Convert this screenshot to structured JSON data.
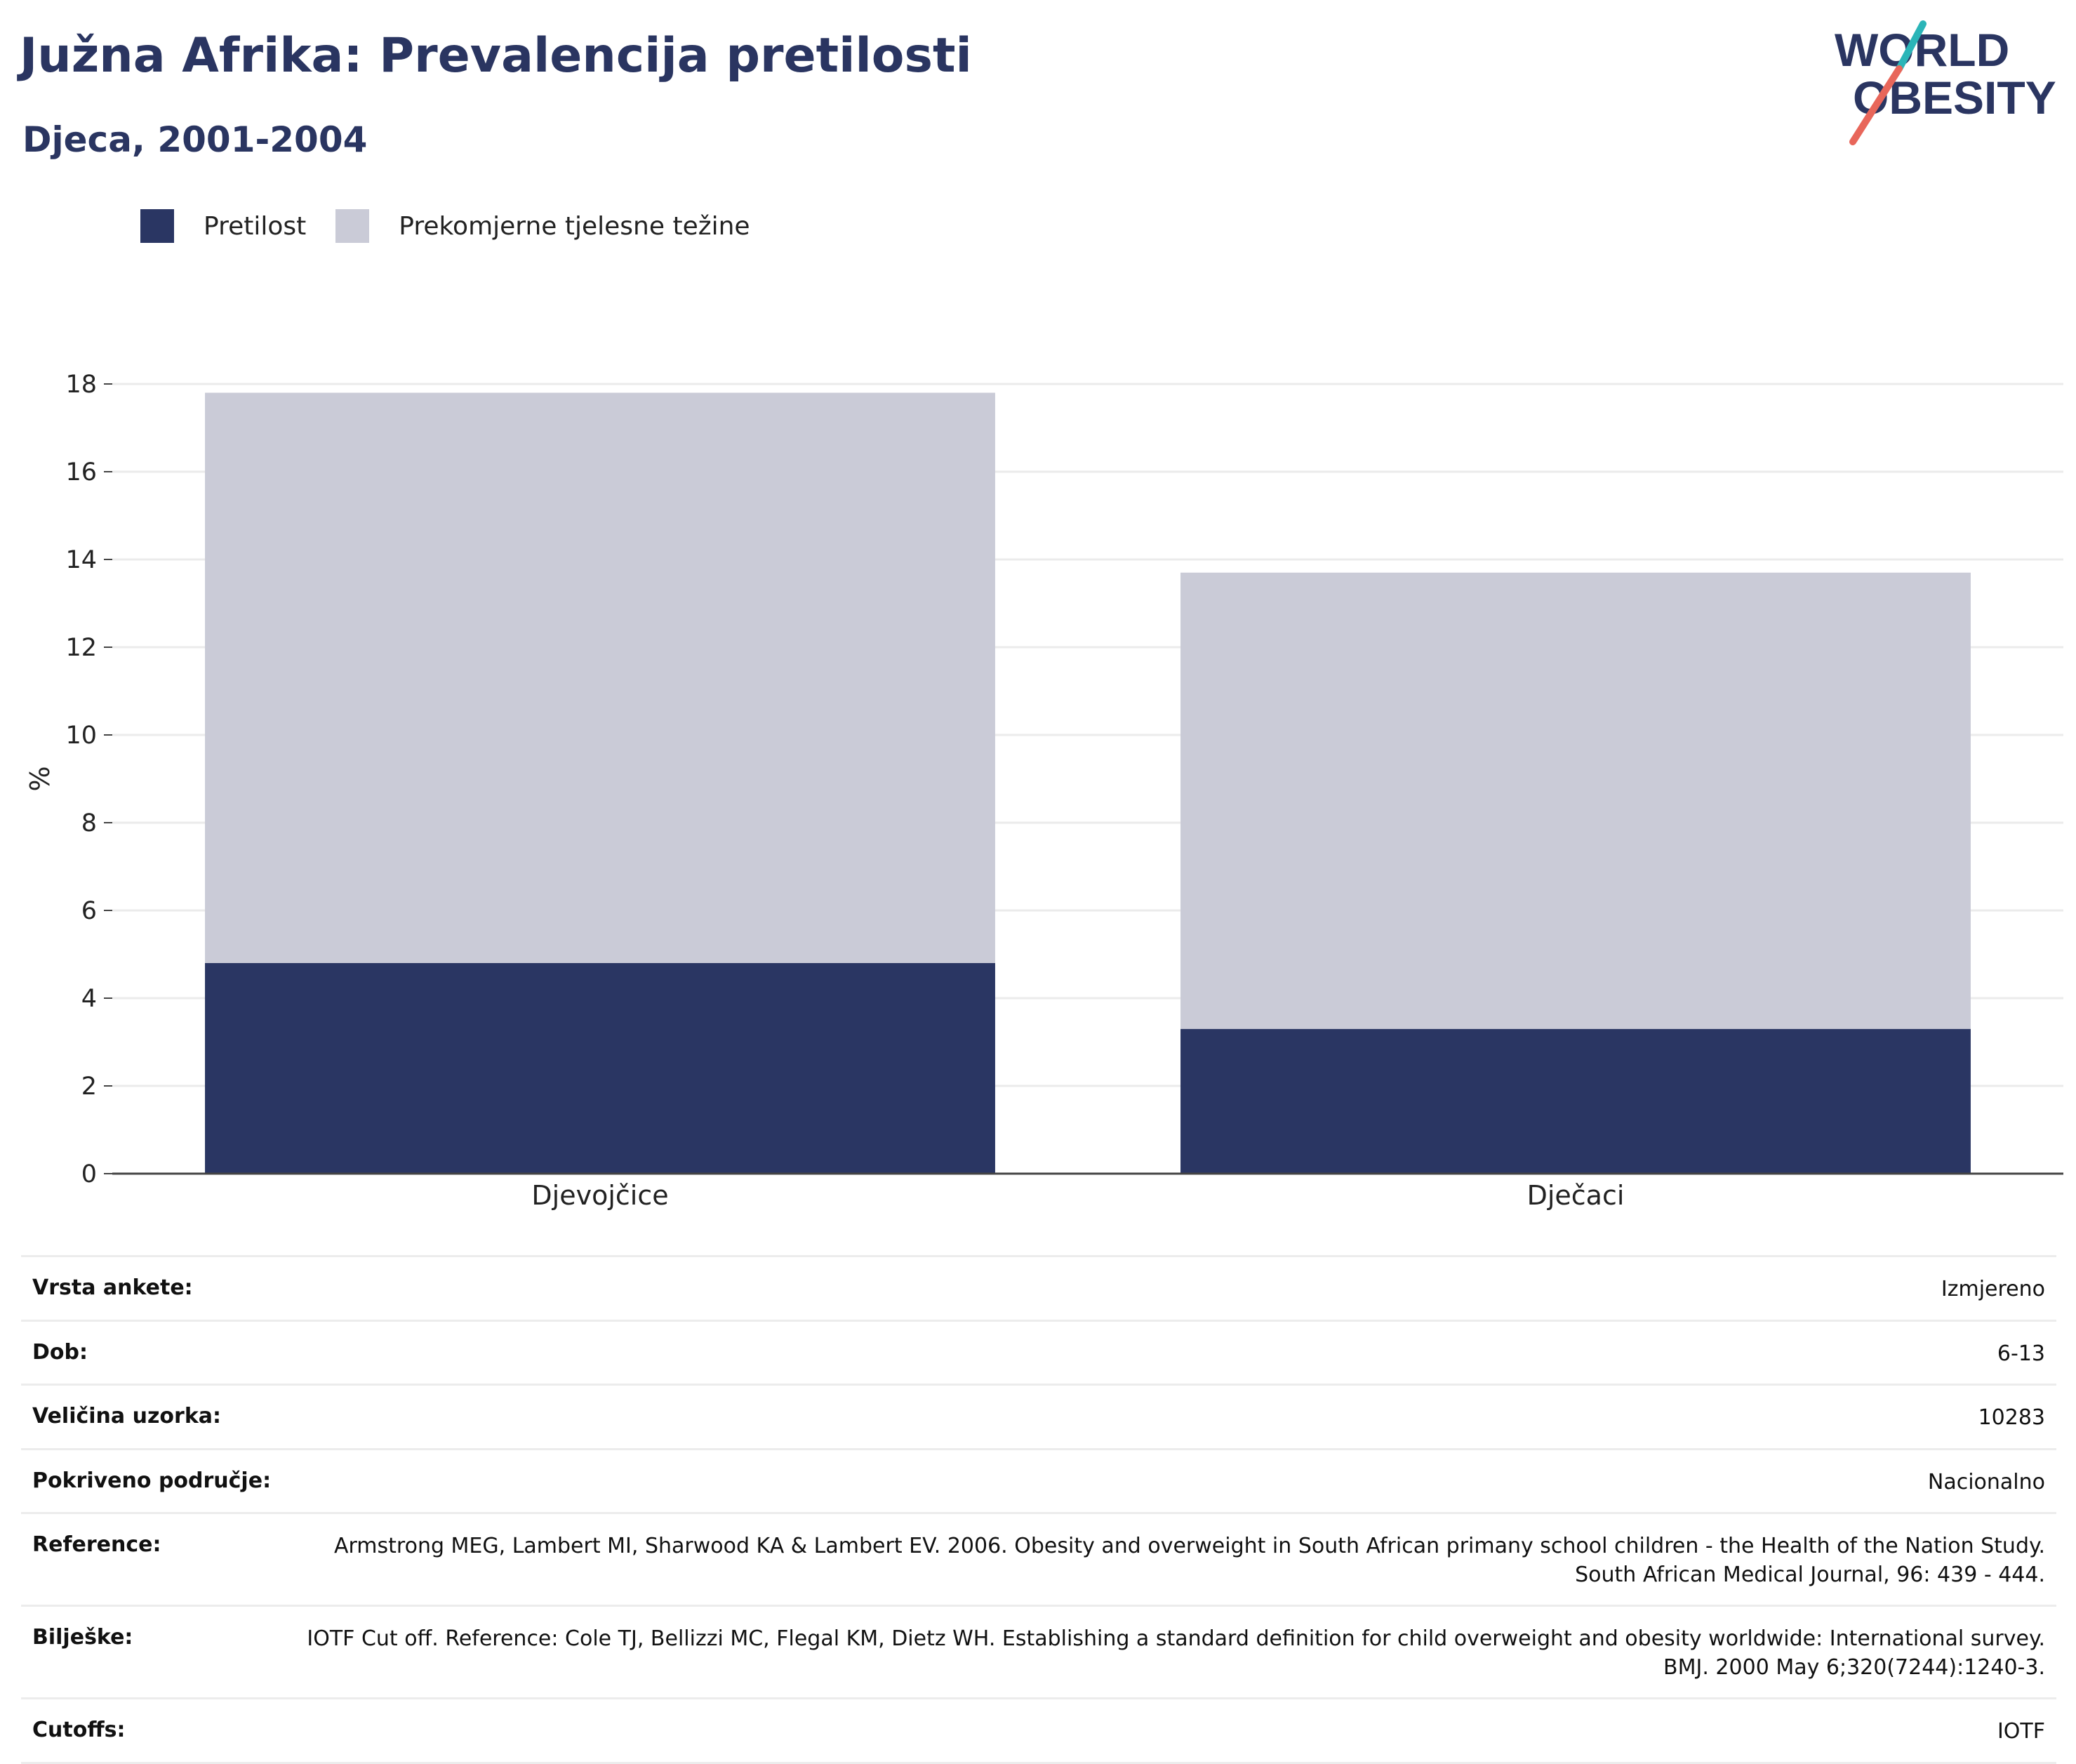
{
  "header": {
    "title": "Južna Afrika: Prevalencija pretilosti",
    "subtitle": "Djeca, 2001-2004"
  },
  "logo": {
    "line1": "WORLD",
    "line2": "OBESITY",
    "accent_colors": [
      "#2bb5b8",
      "#e8665a"
    ]
  },
  "colors": {
    "obesity": "#2a3663",
    "overweight": "#cacbd7",
    "title": "#2a3561"
  },
  "legend": [
    {
      "label": "Pretilost",
      "color": "#2a3663"
    },
    {
      "label": "Prekomjerne tjelesne težine",
      "color": "#cacbd7"
    }
  ],
  "chart_data": {
    "type": "bar",
    "stacked": true,
    "categories": [
      "Djevojčice",
      "Dječaci"
    ],
    "series": [
      {
        "name": "Pretilost",
        "values": [
          4.8,
          3.3
        ]
      },
      {
        "name": "Prekomjerne tjelesne težine",
        "values": [
          13.0,
          10.4
        ]
      }
    ],
    "ylabel": "%",
    "ylim": [
      0,
      18
    ],
    "yticks": [
      0,
      2,
      4,
      6,
      8,
      10,
      12,
      14,
      16,
      18
    ],
    "grid": true,
    "legend_position": "top-left"
  },
  "info": [
    {
      "key": "Vrsta ankete:",
      "value": "Izmjereno"
    },
    {
      "key": "Dob:",
      "value": "6-13"
    },
    {
      "key": "Veličina uzorka:",
      "value": "10283"
    },
    {
      "key": "Pokriveno područje:",
      "value": "Nacionalno"
    },
    {
      "key": "Reference:",
      "value": "Armstrong MEG, Lambert MI, Sharwood KA & Lambert EV. 2006. Obesity and overweight in South African primany school children - the Health of the Nation Study. South African Medical Journal, 96: 439 - 444."
    },
    {
      "key": "Bilješke:",
      "value": "IOTF Cut off. Reference: Cole TJ, Bellizzi MC, Flegal KM, Dietz WH. Establishing a standard definition for child overweight and obesity worldwide: International survey. BMJ. 2000 May 6;320(7244):1240-3."
    },
    {
      "key": "Cutoffs:",
      "value": "IOTF"
    }
  ]
}
